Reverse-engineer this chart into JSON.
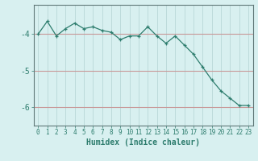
{
  "x": [
    0,
    1,
    2,
    3,
    4,
    5,
    6,
    7,
    8,
    9,
    10,
    11,
    12,
    13,
    14,
    15,
    16,
    17,
    18,
    19,
    20,
    21,
    22,
    23
  ],
  "y": [
    -4.0,
    -3.65,
    -4.05,
    -3.85,
    -3.7,
    -3.85,
    -3.8,
    -3.9,
    -3.95,
    -4.15,
    -4.05,
    -4.05,
    -3.8,
    -4.05,
    -4.25,
    -4.05,
    -4.3,
    -4.55,
    -4.9,
    -5.25,
    -5.55,
    -5.75,
    -5.95,
    -5.95
  ],
  "line_color": "#2e7d6e",
  "marker": "+",
  "marker_size": 3,
  "bg_color": "#d8f0f0",
  "grid_color": "#b8d8d8",
  "red_line_color": "#c89898",
  "xlabel": "Humidex (Indice chaleur)",
  "xlabel_fontsize": 7,
  "yticks": [
    -4,
    -5,
    -6
  ],
  "ylim": [
    -6.5,
    -3.2
  ],
  "xlim": [
    -0.5,
    23.5
  ],
  "tick_fontsize": 7,
  "xtick_fontsize": 5.5
}
